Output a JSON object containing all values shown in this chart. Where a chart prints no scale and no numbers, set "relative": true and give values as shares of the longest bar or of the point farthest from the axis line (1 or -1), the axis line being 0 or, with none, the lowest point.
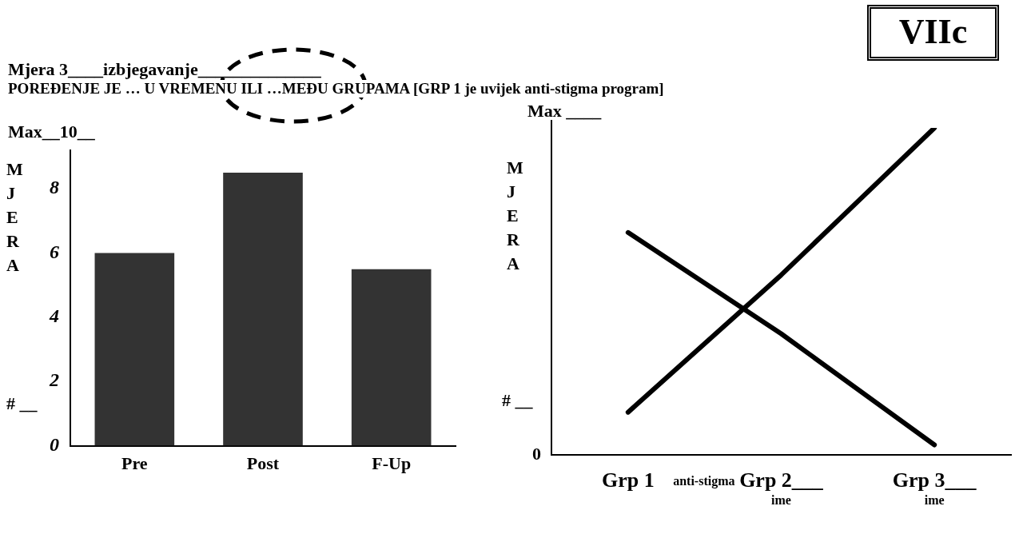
{
  "chart_data": [
    {
      "type": "bar",
      "title": "Mjera 3____izbjegavanje______________",
      "subtitle": "POREĐENJE JE … U VREMENU ILI …MEĐU GRUPAMA [GRP 1 je uvijek anti-stigma program]",
      "ylabel": "MJERA",
      "annotations": [
        "VIIc",
        "Max__10__",
        "# __"
      ],
      "categories": [
        "Pre",
        "Post",
        "F-Up"
      ],
      "values": [
        6,
        8.5,
        5.5
      ],
      "color": "#333333",
      "ylim": [
        0,
        9.2
      ],
      "yticks": [
        0,
        2,
        4,
        6,
        8
      ],
      "grid": false,
      "legend": false
    },
    {
      "type": "line",
      "relative": true,
      "ylabel": "MJERA",
      "annotations": [
        "Max ____",
        "anti-stigma",
        "ime",
        "ime",
        "# __",
        "0"
      ],
      "categories": [
        "Grp 1",
        "Grp 2___",
        "Grp 3___"
      ],
      "marker": "none",
      "line_style": "solid",
      "grid": false,
      "legend": false,
      "series": [
        {
          "color": "#000000",
          "values": [
            0.68,
            0.37,
            0.03
          ]
        },
        {
          "color": "#000000",
          "values": [
            0.13,
            0.55,
            1
          ]
        }
      ]
    }
  ]
}
